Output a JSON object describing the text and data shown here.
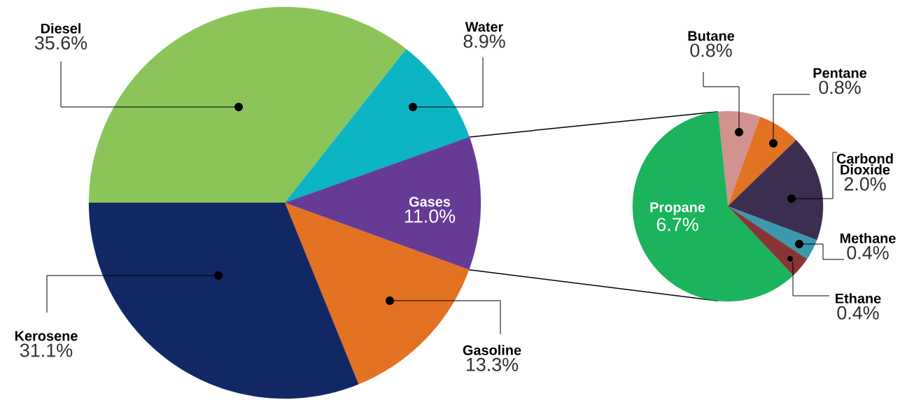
{
  "chart_data": [
    {
      "type": "pie",
      "categories": [
        "Diesel",
        "Water",
        "Gases",
        "Gasoline",
        "Kerosene"
      ],
      "values": [
        35.6,
        8.9,
        11.0,
        13.3,
        31.1
      ],
      "value_labels": [
        "35.6%",
        "8.9%",
        "11.0%",
        "13.3%",
        "31.1%"
      ],
      "colors": [
        "#8bc55a",
        "#0bb5c4",
        "#653b96",
        "#e37222",
        "#112865"
      ]
    },
    {
      "type": "pie",
      "categories": [
        "Butane",
        "Pentane",
        "Carbond Dioxide",
        "Methane",
        "Ethane",
        "Propane"
      ],
      "values": [
        0.8,
        0.8,
        2.0,
        0.4,
        0.4,
        6.7
      ],
      "value_labels": [
        "0.8%",
        "0.8%",
        "2.0%",
        "0.4%",
        "0.4%",
        "6.7%"
      ],
      "colors": [
        "#d29290",
        "#e37222",
        "#3b2e50",
        "#3c98ac",
        "#8a3535",
        "#1bb35c"
      ]
    }
  ]
}
